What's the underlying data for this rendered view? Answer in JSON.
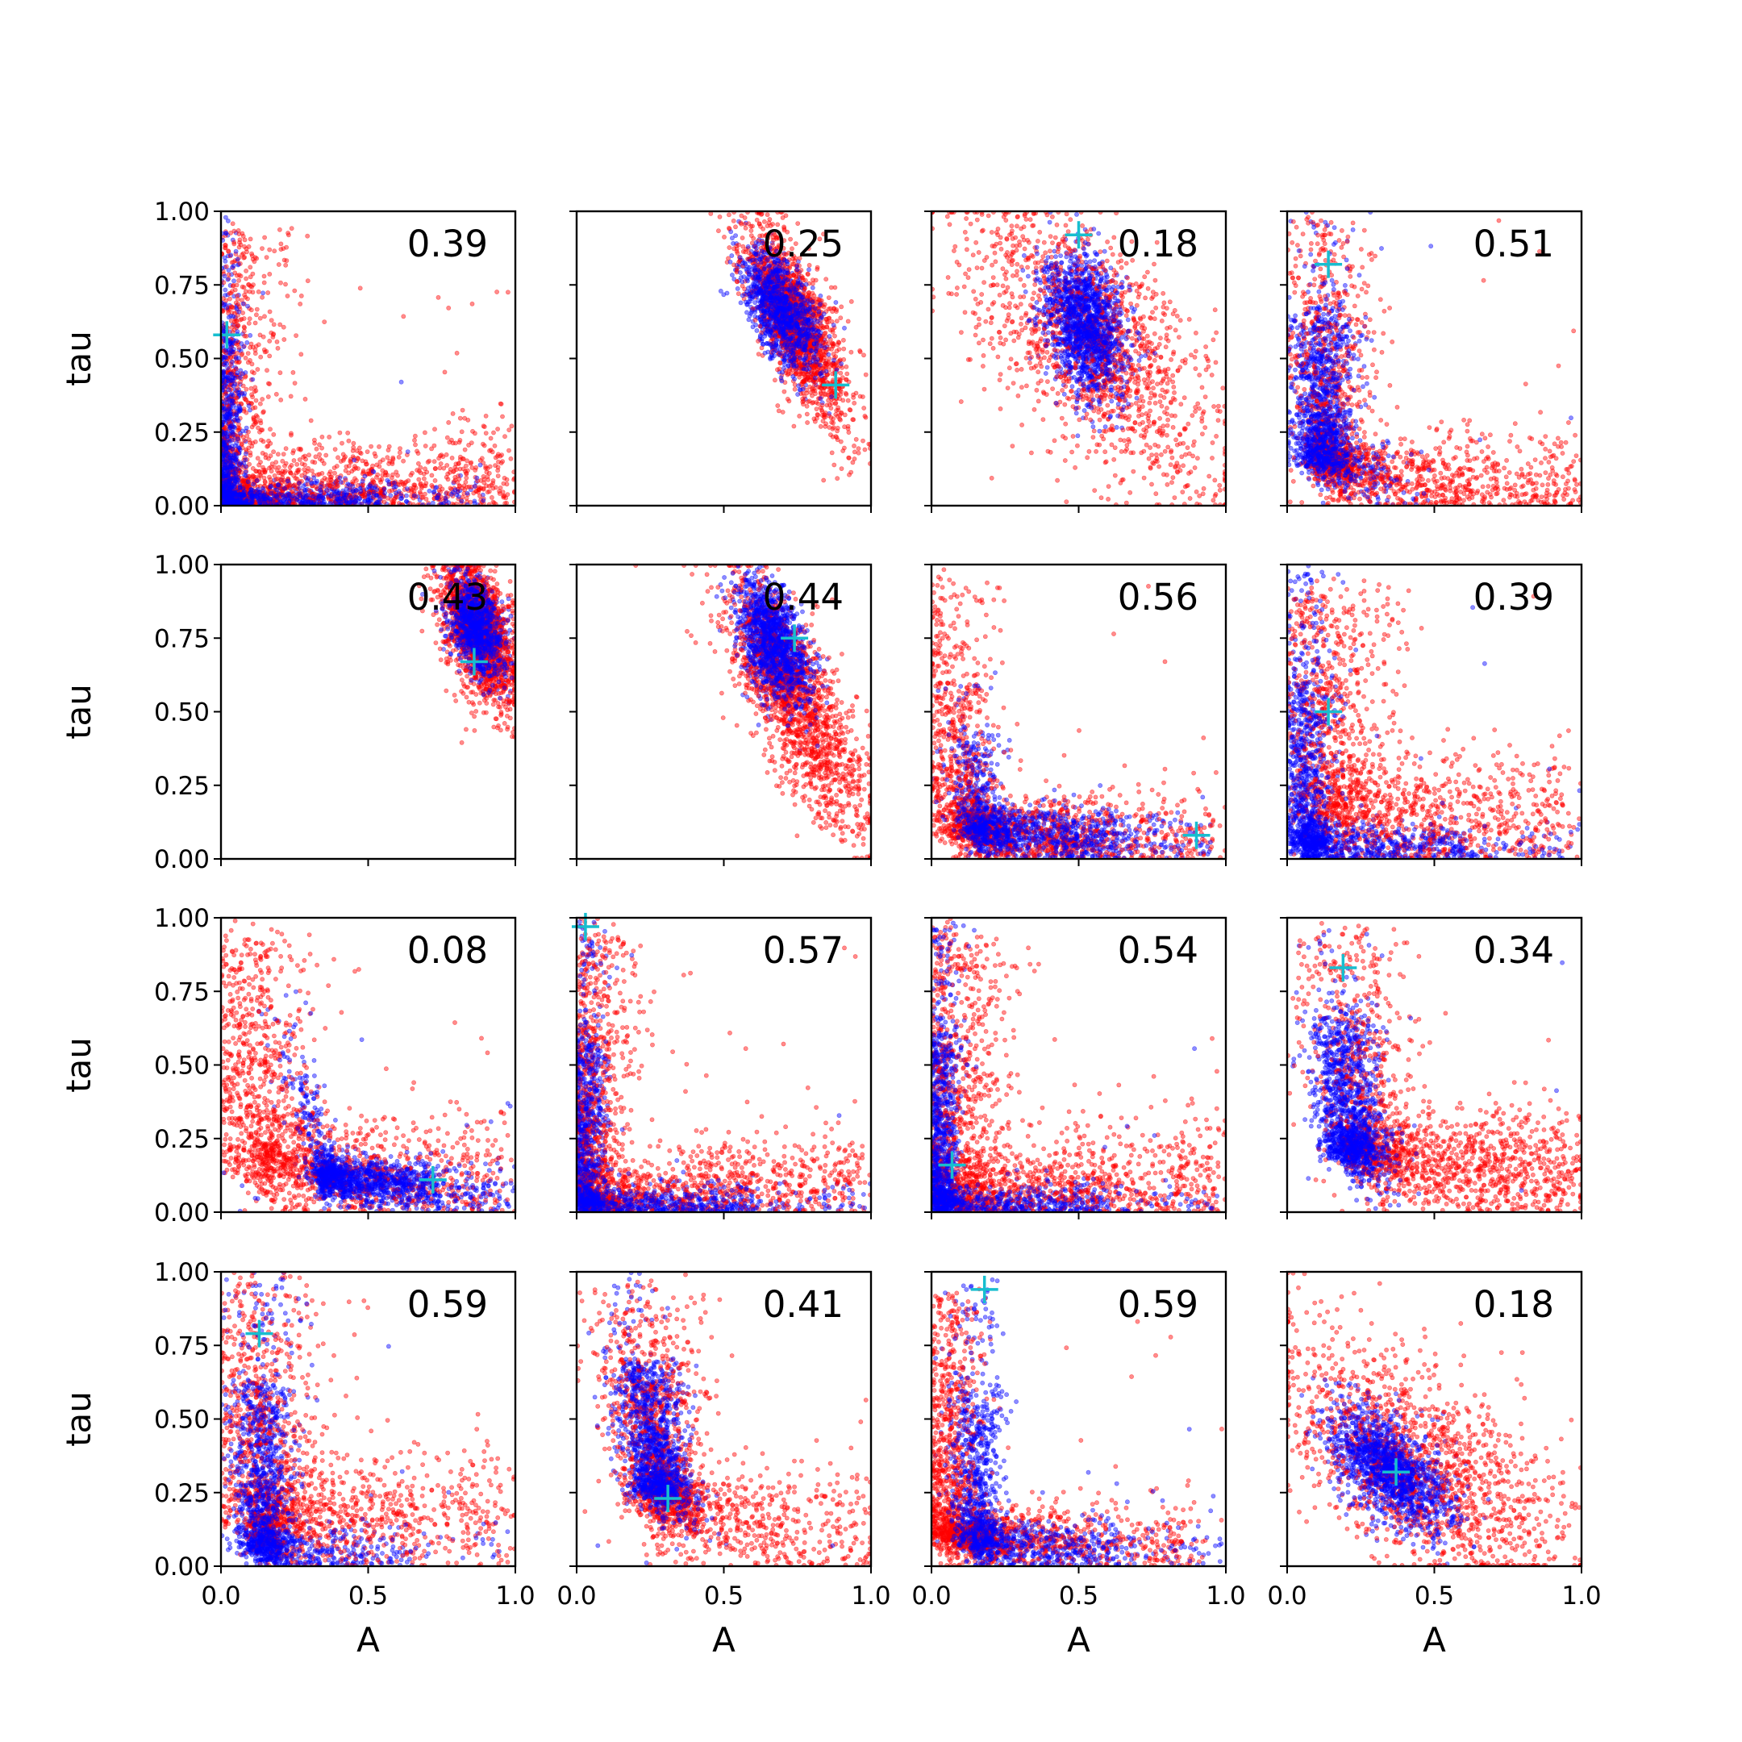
{
  "chart_data": {
    "type": "scatter",
    "layout": {
      "rows": 4,
      "cols": 4
    },
    "xlabel": "A",
    "ylabel": "tau",
    "xlim": [
      0,
      1
    ],
    "ylim": [
      0,
      1
    ],
    "xticks": [
      "0.0",
      "0.5",
      "1.0"
    ],
    "yticks": [
      "0.00",
      "0.25",
      "0.50",
      "0.75",
      "1.00"
    ],
    "colors": {
      "series_red": "#ff0000",
      "series_blue": "#0000ff",
      "marker": "#17becf",
      "axis": "#000000"
    },
    "grid": false,
    "panels": [
      {
        "label": "0.39",
        "marker": [
          0.02,
          0.58
        ],
        "shape": "L",
        "red": {
          "corner": [
            0.02,
            0.02
          ],
          "armA": [
            0.97,
            0.08
          ],
          "armT": [
            0.03,
            0.95
          ],
          "spread": 0.07,
          "vbias": 0.35,
          "tail": 0.82
        },
        "blue": {
          "corner": [
            0.02,
            0.02
          ],
          "armA": [
            0.9,
            0.03
          ],
          "armT": [
            0.02,
            0.97
          ],
          "spread": 0.025,
          "vbias": 0.5,
          "tail": 0.2
        }
      },
      {
        "label": "0.25",
        "marker": [
          0.88,
          0.41
        ],
        "shape": "blob",
        "red": {
          "c": [
            0.75,
            0.62
          ],
          "s": [
            0.09,
            0.17
          ],
          "r": -0.7
        },
        "blue": {
          "c": [
            0.7,
            0.66
          ],
          "s": [
            0.065,
            0.1
          ],
          "r": -0.6
        }
      },
      {
        "label": "0.18",
        "marker": [
          0.5,
          0.92
        ],
        "shape": "blob",
        "red": {
          "c": [
            0.55,
            0.55
          ],
          "s": [
            0.22,
            0.26
          ],
          "r": -0.65
        },
        "blue": {
          "c": [
            0.52,
            0.61
          ],
          "s": [
            0.07,
            0.12
          ],
          "r": -0.35
        }
      },
      {
        "label": "0.51",
        "marker": [
          0.14,
          0.82
        ],
        "shape": "L",
        "red": {
          "corner": [
            0.15,
            0.12
          ],
          "armA": [
            0.98,
            0.05
          ],
          "armT": [
            0.12,
            0.97
          ],
          "spread": 0.06,
          "vbias": 0.45,
          "tail": 0.55
        },
        "blue": {
          "corner": [
            0.12,
            0.15
          ],
          "armA": [
            0.5,
            0.05
          ],
          "armT": [
            0.12,
            0.99
          ],
          "spread": 0.045,
          "vbias": 0.85,
          "tail": 0.1
        }
      },
      {
        "label": "0.43",
        "marker": [
          0.86,
          0.67
        ],
        "shape": "blob",
        "red": {
          "c": [
            0.88,
            0.77
          ],
          "s": [
            0.07,
            0.13
          ],
          "r": -0.5
        },
        "blue": {
          "c": [
            0.87,
            0.79
          ],
          "s": [
            0.045,
            0.08
          ],
          "r": -0.4
        }
      },
      {
        "label": "0.44",
        "marker": [
          0.74,
          0.75
        ],
        "shape": "blob",
        "red": {
          "c": [
            0.75,
            0.52
          ],
          "s": [
            0.12,
            0.22
          ],
          "r": -0.75
        },
        "blue": {
          "c": [
            0.67,
            0.73
          ],
          "s": [
            0.06,
            0.1
          ],
          "r": -0.5
        }
      },
      {
        "label": "0.56",
        "marker": [
          0.9,
          0.08
        ],
        "shape": "L",
        "red": {
          "corner": [
            0.1,
            0.1
          ],
          "armA": [
            0.97,
            0.05
          ],
          "armT": [
            0.04,
            0.95
          ],
          "spread": 0.06,
          "vbias": 0.4,
          "tail": 0.45
        },
        "blue": {
          "corner": [
            0.15,
            0.1
          ],
          "armA": [
            0.97,
            0.05
          ],
          "armT": [
            0.15,
            0.62
          ],
          "spread": 0.04,
          "vbias": 0.25,
          "tail": 0.2
        }
      },
      {
        "label": "0.39",
        "marker": [
          0.14,
          0.5
        ],
        "shape": "L",
        "red": {
          "corner": [
            0.15,
            0.15
          ],
          "armA": [
            0.95,
            0.15
          ],
          "armT": [
            0.15,
            0.9
          ],
          "spread": 0.08,
          "vbias": 0.5,
          "tail": 0.75
        },
        "blue": {
          "corner": [
            0.07,
            0.05
          ],
          "armA": [
            0.97,
            0.02
          ],
          "armT": [
            0.05,
            0.98
          ],
          "spread": 0.04,
          "vbias": 0.6,
          "tail": 0.2
        }
      },
      {
        "label": "0.08",
        "marker": [
          0.72,
          0.11
        ],
        "shape": "L",
        "red": {
          "corner": [
            0.15,
            0.15
          ],
          "armA": [
            0.95,
            0.1
          ],
          "armT": [
            0.08,
            0.92
          ],
          "spread": 0.08,
          "vbias": 0.5,
          "tail": 0.6
        },
        "blue": {
          "corner": [
            0.35,
            0.12
          ],
          "armA": [
            0.98,
            0.06
          ],
          "armT": [
            0.18,
            0.75
          ],
          "spread": 0.035,
          "vbias": 0.15,
          "tail": 0.2
        }
      },
      {
        "label": "0.57",
        "marker": [
          0.03,
          0.97
        ],
        "shape": "L",
        "red": {
          "corner": [
            0.05,
            0.05
          ],
          "armA": [
            0.97,
            0.12
          ],
          "armT": [
            0.05,
            0.97
          ],
          "spread": 0.06,
          "vbias": 0.45,
          "tail": 0.7
        },
        "blue": {
          "corner": [
            0.03,
            0.03
          ],
          "armA": [
            0.97,
            0.02
          ],
          "armT": [
            0.03,
            0.98
          ],
          "spread": 0.03,
          "vbias": 0.55,
          "tail": 0.2
        }
      },
      {
        "label": "0.54",
        "marker": [
          0.07,
          0.16
        ],
        "shape": "L",
        "red": {
          "corner": [
            0.1,
            0.08
          ],
          "armA": [
            0.97,
            0.12
          ],
          "armT": [
            0.08,
            0.95
          ],
          "spread": 0.07,
          "vbias": 0.45,
          "tail": 0.75
        },
        "blue": {
          "corner": [
            0.03,
            0.03
          ],
          "armA": [
            0.97,
            0.02
          ],
          "armT": [
            0.03,
            0.98
          ],
          "spread": 0.03,
          "vbias": 0.6,
          "tail": 0.2
        }
      },
      {
        "label": "0.34",
        "marker": [
          0.19,
          0.83
        ],
        "shape": "L",
        "red": {
          "corner": [
            0.28,
            0.18
          ],
          "armA": [
            0.98,
            0.14
          ],
          "armT": [
            0.2,
            0.95
          ],
          "spread": 0.07,
          "vbias": 0.35,
          "tail": 0.75
        },
        "blue": {
          "corner": [
            0.22,
            0.2
          ],
          "armA": [
            0.45,
            0.15
          ],
          "armT": [
            0.15,
            0.99
          ],
          "spread": 0.05,
          "vbias": 0.8,
          "tail": 0.1
        }
      },
      {
        "label": "0.59",
        "marker": [
          0.13,
          0.79
        ],
        "shape": "L",
        "red": {
          "corner": [
            0.15,
            0.15
          ],
          "armA": [
            0.97,
            0.2
          ],
          "armT": [
            0.12,
            0.97
          ],
          "spread": 0.08,
          "vbias": 0.5,
          "tail": 0.6
        },
        "blue": {
          "corner": [
            0.14,
            0.06
          ],
          "armA": [
            0.98,
            0.03
          ],
          "armT": [
            0.14,
            0.99
          ],
          "spread": 0.045,
          "vbias": 0.75,
          "tail": 0.2
        }
      },
      {
        "label": "0.41",
        "marker": [
          0.31,
          0.23
        ],
        "shape": "L",
        "red": {
          "corner": [
            0.3,
            0.2
          ],
          "armA": [
            0.98,
            0.1
          ],
          "armT": [
            0.2,
            0.95
          ],
          "spread": 0.07,
          "vbias": 0.6,
          "tail": 0.55
        },
        "blue": {
          "corner": [
            0.28,
            0.25
          ],
          "armA": [
            0.5,
            0.15
          ],
          "armT": [
            0.18,
            0.99
          ],
          "spread": 0.045,
          "vbias": 0.85,
          "tail": 0.1
        }
      },
      {
        "label": "0.59",
        "marker": [
          0.18,
          0.94
        ],
        "shape": "L",
        "red": {
          "corner": [
            0.05,
            0.1
          ],
          "armA": [
            0.9,
            0.08
          ],
          "armT": [
            0.05,
            0.92
          ],
          "spread": 0.05,
          "vbias": 0.5,
          "tail": 0.5
        },
        "blue": {
          "corner": [
            0.15,
            0.08
          ],
          "armA": [
            0.98,
            0.04
          ],
          "armT": [
            0.15,
            0.99
          ],
          "spread": 0.04,
          "vbias": 0.55,
          "tail": 0.2
        }
      },
      {
        "label": "0.18",
        "marker": [
          0.37,
          0.32
        ],
        "shape": "blob",
        "red": {
          "c": [
            0.45,
            0.35
          ],
          "s": [
            0.25,
            0.22
          ],
          "r": -0.6
        },
        "blue": {
          "c": [
            0.35,
            0.33
          ],
          "s": [
            0.1,
            0.1
          ],
          "r": -0.55
        }
      }
    ]
  }
}
